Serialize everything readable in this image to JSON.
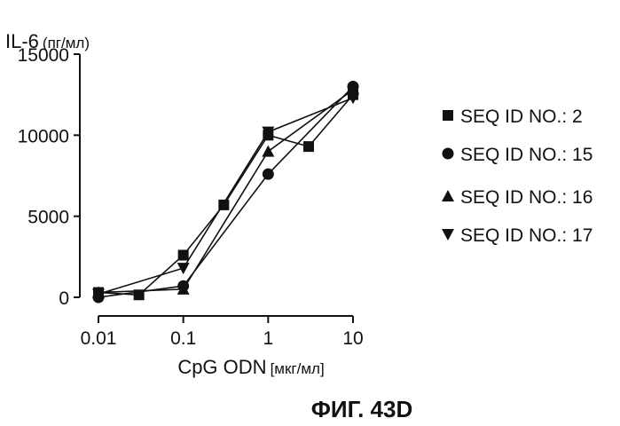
{
  "chart_data": {
    "type": "line",
    "ylabel_main": "IL-6",
    "ylabel_unit": "(пг/мл)",
    "xlabel_main": "CpG ODN",
    "xlabel_unit": "[мкг/мл]",
    "figure_label": "ФИГ. 43D",
    "x_scale": "log",
    "xlim": [
      0.01,
      10
    ],
    "ylim": [
      0,
      15000
    ],
    "x_ticks": [
      0.01,
      0.1,
      1,
      10
    ],
    "x_tick_labels": [
      "0.01",
      "0.1",
      "1",
      "10"
    ],
    "y_ticks": [
      0,
      5000,
      10000,
      15000
    ],
    "y_tick_labels": [
      "0",
      "5000",
      "10000",
      "15000"
    ],
    "grid": false,
    "legend_position": "right",
    "series": [
      {
        "name": "SEQ ID NO.: 2",
        "marker": "square",
        "x": [
          0.01,
          0.03,
          0.1,
          0.3,
          1,
          3,
          10
        ],
        "y": [
          300,
          150,
          2600,
          5700,
          10000,
          9300,
          12500
        ]
      },
      {
        "name": "SEQ ID NO.: 15",
        "marker": "circle",
        "x": [
          0.01,
          0.1,
          1,
          10
        ],
        "y": [
          0,
          700,
          7600,
          13000
        ]
      },
      {
        "name": "SEQ ID NO.: 16",
        "marker": "triangle-up",
        "x": [
          0.01,
          0.1,
          1,
          10
        ],
        "y": [
          300,
          500,
          9000,
          12800
        ]
      },
      {
        "name": "SEQ ID NO.: 17",
        "marker": "triangle-down",
        "x": [
          0.01,
          0.1,
          1,
          10
        ],
        "y": [
          200,
          1800,
          10200,
          12300
        ]
      }
    ]
  }
}
